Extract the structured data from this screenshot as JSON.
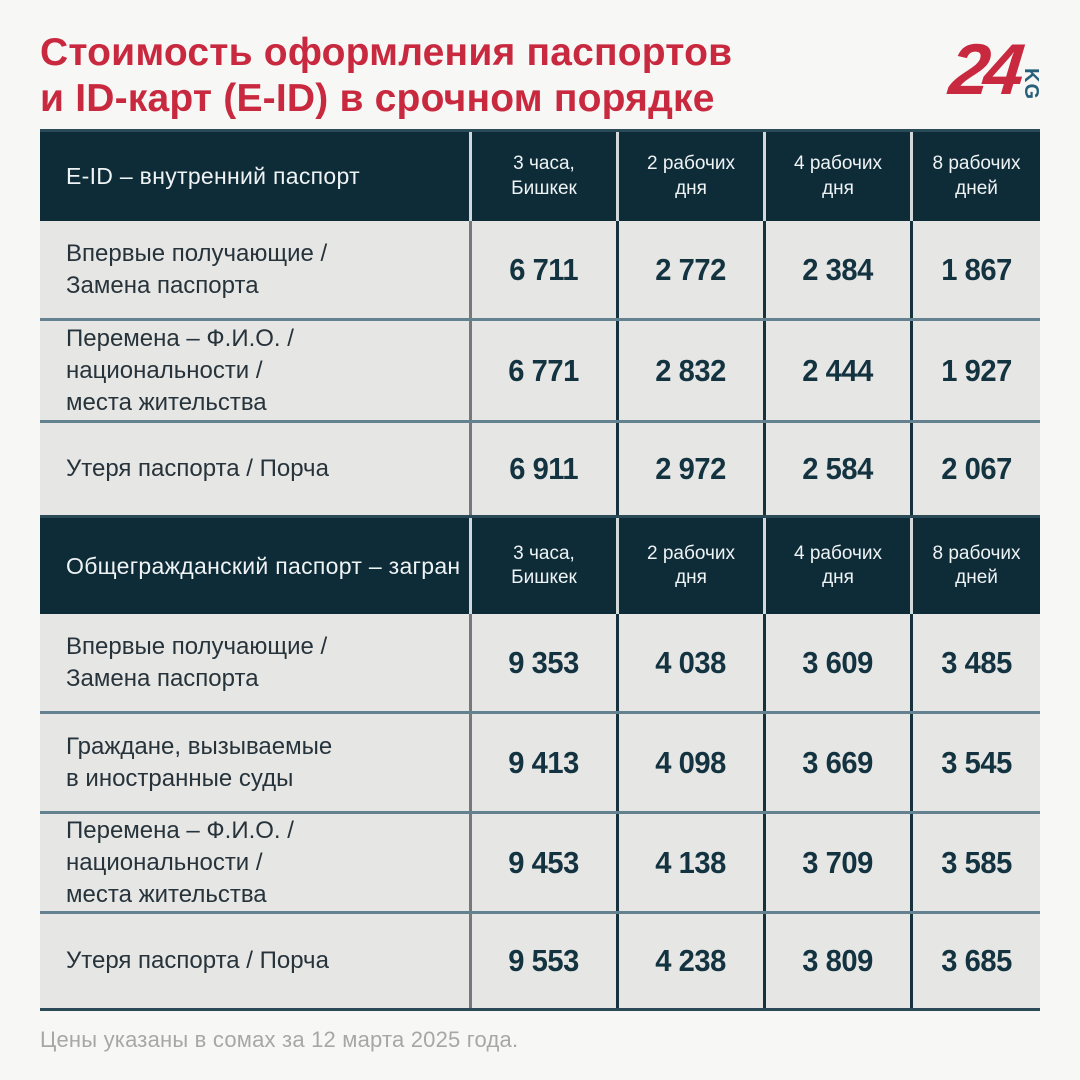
{
  "title": {
    "line1": "Стоимость оформления паспортов",
    "line2": "и ID-карт (E-ID) в срочном порядке"
  },
  "logo": {
    "number": "24",
    "suffix": "KG"
  },
  "colors": {
    "accent_red": "#c9293f",
    "header_bg": "#0e2b38",
    "row_bg": "#e6e6e4",
    "number_text": "#143341",
    "row_divider": "#64818f",
    "logo_kg": "#27607b",
    "footer_gray": "#a7a7a5"
  },
  "table": {
    "sections": [
      {
        "header": {
          "label": "E-ID – внутренний паспорт",
          "columns": [
            "3 часа,\nБишкек",
            "2 рабочих\nдня",
            "4 рабочих\nдня",
            "8 рабочих\nдней"
          ]
        },
        "rows": [
          {
            "label": "Впервые получающие /\nЗамена паспорта",
            "values": [
              "6 711",
              "2 772",
              "2 384",
              "1 867"
            ]
          },
          {
            "label": "Перемена – Ф.И.О. /\nнациональности /\nместа жительства",
            "values": [
              "6 771",
              "2 832",
              "2 444",
              "1 927"
            ]
          },
          {
            "label": "Утеря паспорта / Порча",
            "values": [
              "6 911",
              "2 972",
              "2 584",
              "2 067"
            ]
          }
        ]
      },
      {
        "header": {
          "label": "Общегражданский паспорт – загран",
          "columns": [
            "3 часа,\nБишкек",
            "2 рабочих\nдня",
            "4 рабочих\nдня",
            "8 рабочих\nдней"
          ]
        },
        "rows": [
          {
            "label": "Впервые получающие /\nЗамена паспорта",
            "values": [
              "9 353",
              "4 038",
              "3 609",
              "3 485"
            ]
          },
          {
            "label": "Граждане, вызываемые\nв иностранные суды",
            "values": [
              "9 413",
              "4 098",
              "3 669",
              "3 545"
            ]
          },
          {
            "label": "Перемена – Ф.И.О. /\nнациональности /\nместа жительства",
            "values": [
              "9 453",
              "4 138",
              "3 709",
              "3 585"
            ]
          },
          {
            "label": "Утеря паспорта / Порча",
            "values": [
              "9 553",
              "4 238",
              "3 809",
              "3 685"
            ]
          }
        ]
      }
    ]
  },
  "footer": {
    "note": "Цены указаны в сомах за 12 марта 2025 года."
  },
  "chart_data": [
    {
      "type": "table",
      "title": "E-ID – внутренний паспорт",
      "columns": [
        "3 часа, Бишкек",
        "2 рабочих дня",
        "4 рабочих дня",
        "8 рабочих дней"
      ],
      "rows": [
        {
          "label": "Впервые получающие / Замена паспорта",
          "values": [
            6711,
            2772,
            2384,
            1867
          ]
        },
        {
          "label": "Перемена – Ф.И.О. / национальности / места жительства",
          "values": [
            6771,
            2832,
            2444,
            1927
          ]
        },
        {
          "label": "Утеря паспорта / Порча",
          "values": [
            6911,
            2972,
            2584,
            2067
          ]
        }
      ],
      "unit": "сом"
    },
    {
      "type": "table",
      "title": "Общегражданский паспорт – загран",
      "columns": [
        "3 часа, Бишкек",
        "2 рабочих дня",
        "4 рабочих дня",
        "8 рабочих дней"
      ],
      "rows": [
        {
          "label": "Впервые получающие / Замена паспорта",
          "values": [
            9353,
            4038,
            3609,
            3485
          ]
        },
        {
          "label": "Граждане, вызываемые в иностранные суды",
          "values": [
            9413,
            4098,
            3669,
            3545
          ]
        },
        {
          "label": "Перемена – Ф.И.О. / национальности / места жительства",
          "values": [
            9453,
            4138,
            3709,
            3585
          ]
        },
        {
          "label": "Утеря паспорта / Порча",
          "values": [
            9553,
            4238,
            3809,
            3685
          ]
        }
      ],
      "unit": "сом"
    }
  ]
}
